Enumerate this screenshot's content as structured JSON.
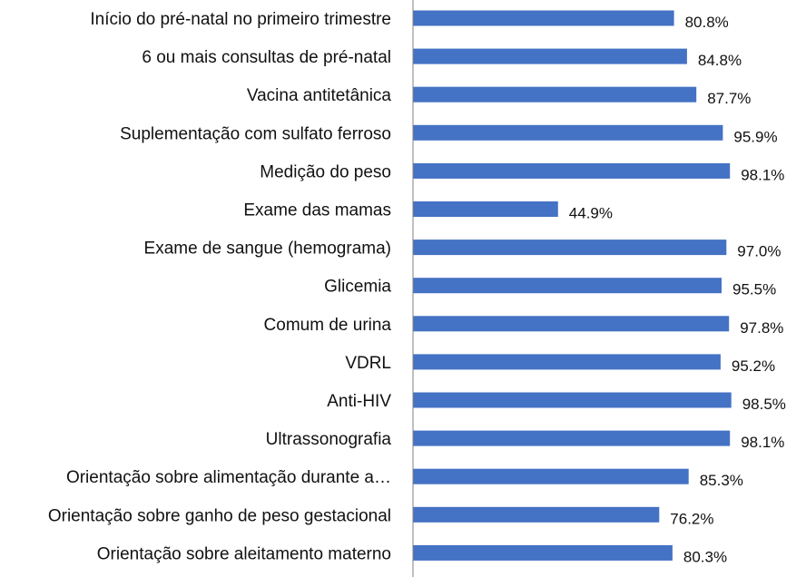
{
  "chart_data": {
    "type": "bar",
    "orientation": "horizontal",
    "categories": [
      "Início do pré-natal no primeiro trimestre",
      "6 ou mais consultas de pré-natal",
      "Vacina antitetânica",
      "Suplementação com sulfato ferroso",
      "Medição do peso",
      "Exame das mamas",
      "Exame de sangue (hemograma)",
      "Glicemia",
      "Comum de urina",
      "VDRL",
      "Anti-HIV",
      "Ultrassonografia",
      "Orientação sobre alimentação durante a…",
      "Orientação sobre ganho de peso gestacional",
      "Orientação sobre aleitamento materno"
    ],
    "values": [
      80.8,
      84.8,
      87.7,
      95.9,
      98.1,
      44.9,
      97.0,
      95.5,
      97.8,
      95.2,
      98.5,
      98.1,
      85.3,
      76.2,
      80.3
    ],
    "value_labels": [
      "80.8%",
      "84.8%",
      "87.7%",
      "95.9%",
      "98.1%",
      "44.9%",
      "97.0%",
      "95.5%",
      "97.8%",
      "95.2%",
      "98.5%",
      "98.1%",
      "85.3%",
      "76.2%",
      "80.3%"
    ],
    "xlim": [
      0,
      100
    ],
    "title": "",
    "xlabel": "",
    "ylabel": "",
    "grid": false,
    "bar_color": "#4472C4",
    "axis_color": "#808080"
  }
}
